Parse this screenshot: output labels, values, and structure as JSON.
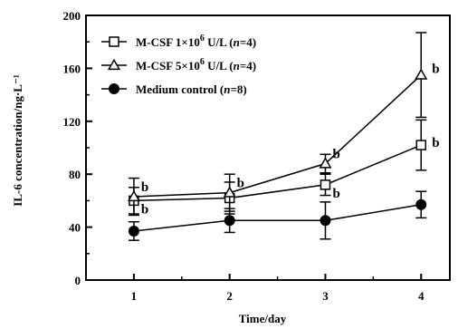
{
  "chart_data": {
    "type": "line",
    "xlabel": "Time/day",
    "ylabel": "IL-6 concentration/ng·L⁻¹",
    "x": [
      1,
      2,
      3,
      4
    ],
    "xlim": [
      0.5,
      4.3
    ],
    "ylim": [
      0,
      200
    ],
    "x_ticks": [
      "1",
      "2",
      "3",
      "4"
    ],
    "y_ticks": [
      "0",
      "40",
      "80",
      "120",
      "160",
      "200"
    ],
    "grid": false,
    "legend_position": "top-left",
    "series": [
      {
        "name_main": "M-CSF 1×10",
        "name_sup": "6",
        "name_rest": " U/L (",
        "name_n": "n",
        "name_end": "=4)",
        "marker": "open-square",
        "values": [
          60,
          62,
          72,
          102
        ],
        "errors": [
          10,
          12,
          8,
          19
        ],
        "annotations": [
          "b",
          "",
          "b",
          "b"
        ]
      },
      {
        "name_main": "M-CSF 5×10",
        "name_sup": "6",
        "name_rest": " U/L (",
        "name_n": "n",
        "name_end": "=4)",
        "marker": "open-triangle",
        "values": [
          63,
          66,
          88,
          155
        ],
        "errors": [
          14,
          14,
          7,
          32
        ],
        "annotations": [
          "b",
          "b",
          "b",
          "b"
        ]
      },
      {
        "name_main": "Medium control (",
        "name_sup": "",
        "name_rest": "",
        "name_n": "n",
        "name_end": "=8)",
        "marker": "filled-circle",
        "values": [
          37,
          45,
          45,
          57
        ],
        "errors": [
          7,
          9,
          14,
          10
        ],
        "annotations": [
          "",
          "",
          "",
          ""
        ]
      }
    ]
  }
}
